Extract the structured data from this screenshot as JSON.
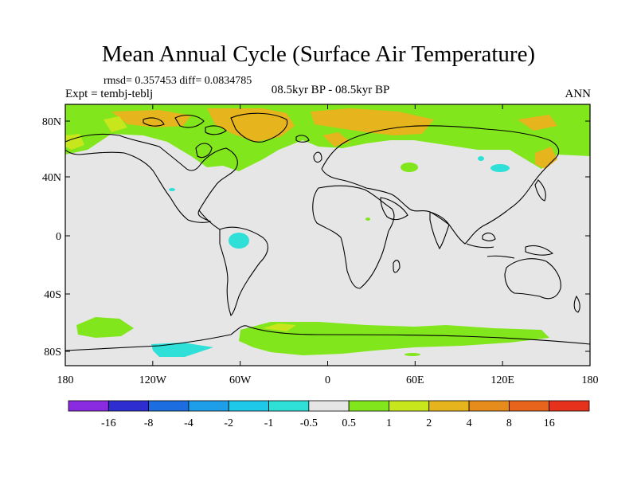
{
  "title": "Mean Annual Cycle (Surface Air Temperature)",
  "stats": "rmsd= 0.357453 diff= 0.0834785",
  "experiment": "Expt = tembj-teblj",
  "period": "08.5kyr BP - 08.5kyr BP",
  "season": "ANN",
  "map": {
    "background_color": "#e6e6e6",
    "lat_ticks": [
      "80N",
      "40N",
      "0",
      "40S",
      "80S"
    ],
    "lon_ticks": [
      "180",
      "120W",
      "60W",
      "0",
      "60E",
      "120E",
      "180"
    ]
  },
  "colorbar": {
    "colors": [
      "#8a2be2",
      "#2e2ed0",
      "#1c6ee0",
      "#1e9ee8",
      "#1ec8e8",
      "#2ee0d8",
      "#e6e6e6",
      "#82e61c",
      "#c8e61c",
      "#e6b41c",
      "#e68c1c",
      "#e6641c",
      "#e6321c"
    ],
    "labels": [
      "-16",
      "-8",
      "-4",
      "-2",
      "-1",
      "-0.5",
      "0.5",
      "1",
      "2",
      "4",
      "8",
      "16"
    ]
  }
}
